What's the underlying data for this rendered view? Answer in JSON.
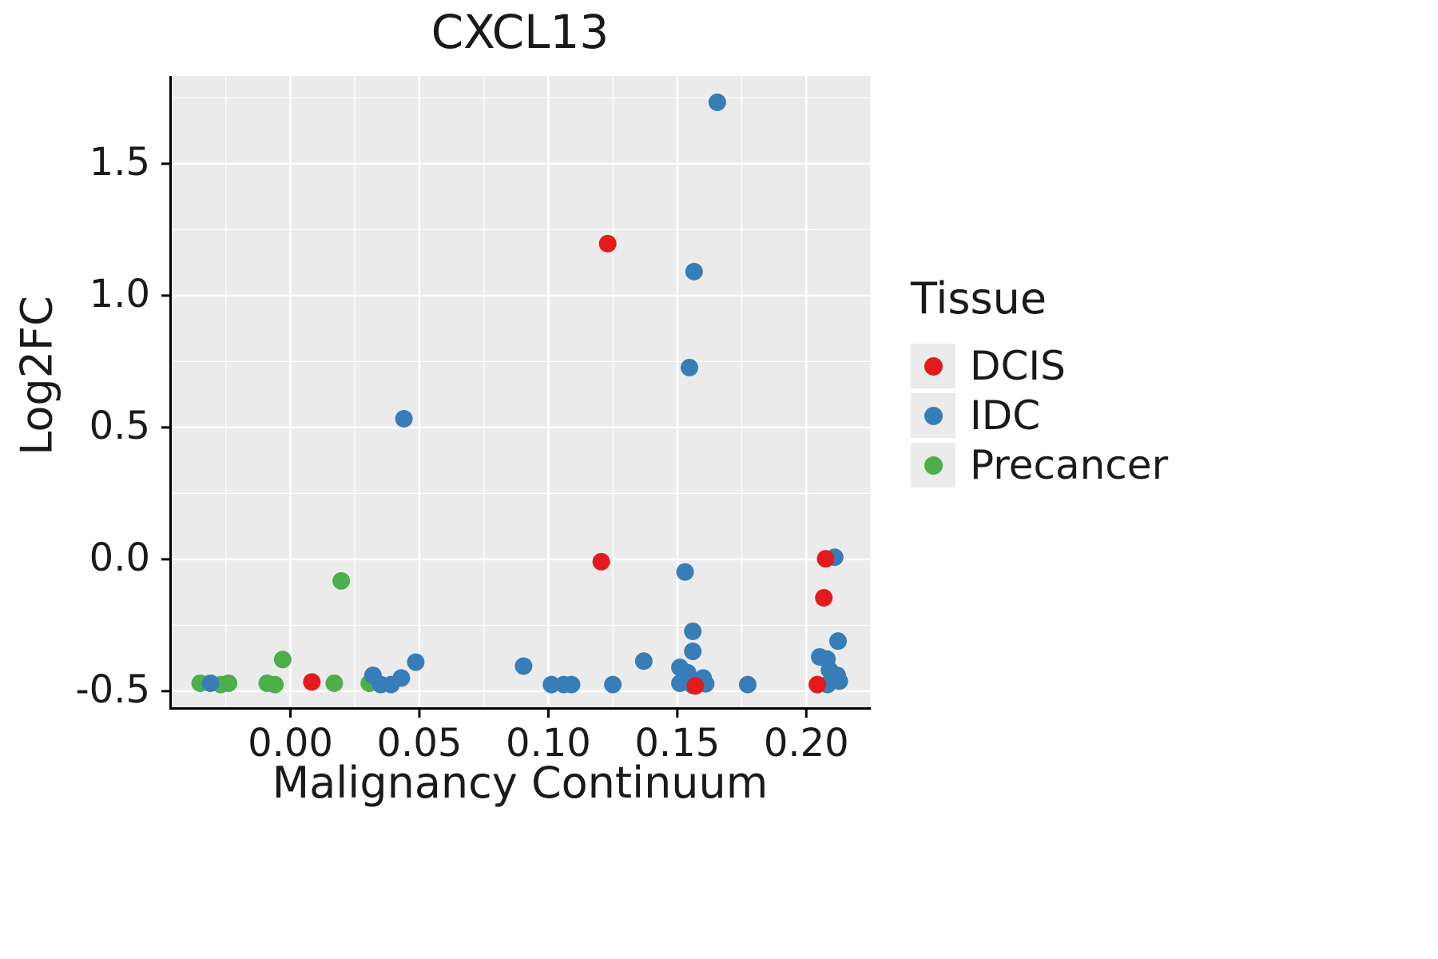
{
  "chart_data": {
    "type": "scatter",
    "title": "CXCL13",
    "xlabel": "Malignancy Continuum",
    "ylabel": "Log2FC",
    "xlim": [
      -0.046,
      0.225
    ],
    "ylim": [
      -0.561,
      1.833
    ],
    "xticks": {
      "values": [
        0.0,
        0.05,
        0.1,
        0.15,
        0.2
      ],
      "labels": [
        "0.00",
        "0.05",
        "0.10",
        "0.15",
        "0.20"
      ]
    },
    "yticks": {
      "values": [
        -0.5,
        0.0,
        0.5,
        1.0,
        1.5
      ],
      "labels": [
        "-0.5",
        "0.0",
        "0.5",
        "1.0",
        "1.5"
      ]
    },
    "x_minor": [
      -0.025,
      0.025,
      0.075,
      0.125,
      0.175,
      0.225
    ],
    "y_minor": [
      -0.25,
      0.25,
      0.75,
      1.25,
      1.75
    ],
    "panel_bg": "#EBEBEB",
    "grid_color": "#FFFFFF",
    "axis_color": "#000000",
    "point_radius": 11,
    "grid": true,
    "legend_position": "right",
    "series": [
      {
        "name": "Precancer",
        "color": "#4DAF4A",
        "points": [
          [
            -0.035,
            -0.47
          ],
          [
            -0.027,
            -0.475
          ],
          [
            -0.024,
            -0.47
          ],
          [
            -0.009,
            -0.47
          ],
          [
            -0.006,
            -0.475
          ],
          [
            -0.003,
            -0.38
          ],
          [
            0.017,
            -0.47
          ],
          [
            0.0197,
            -0.082
          ],
          [
            0.0306,
            -0.47
          ]
        ]
      },
      {
        "name": "IDC",
        "color": "#377EB8",
        "points": [
          [
            -0.031,
            -0.47
          ],
          [
            0.032,
            -0.44
          ],
          [
            0.035,
            -0.475
          ],
          [
            0.039,
            -0.475
          ],
          [
            0.043,
            -0.45
          ],
          [
            0.044,
            0.533
          ],
          [
            0.0486,
            -0.39
          ],
          [
            0.0904,
            -0.405
          ],
          [
            0.1012,
            -0.475
          ],
          [
            0.106,
            -0.475
          ],
          [
            0.109,
            -0.475
          ],
          [
            0.125,
            -0.475
          ],
          [
            0.137,
            -0.386
          ],
          [
            0.151,
            -0.41
          ],
          [
            0.156,
            -0.273
          ],
          [
            0.156,
            -0.349
          ],
          [
            0.154,
            -0.43
          ],
          [
            0.151,
            -0.47
          ],
          [
            0.156,
            -0.478
          ],
          [
            0.16,
            -0.45
          ],
          [
            0.161,
            -0.472
          ],
          [
            0.153,
            -0.048
          ],
          [
            0.1547,
            0.727
          ],
          [
            0.1565,
            1.091
          ],
          [
            0.1655,
            1.733
          ],
          [
            0.1773,
            -0.475
          ],
          [
            0.2052,
            -0.37
          ],
          [
            0.208,
            -0.378
          ],
          [
            0.2123,
            -0.31
          ],
          [
            0.209,
            -0.42
          ],
          [
            0.212,
            -0.44
          ],
          [
            0.2128,
            -0.462
          ],
          [
            0.2082,
            -0.475
          ],
          [
            0.211,
            0.008
          ]
        ]
      },
      {
        "name": "DCIS",
        "color": "#E41A1C",
        "points": [
          [
            0.0083,
            -0.465
          ],
          [
            0.123,
            1.197
          ],
          [
            0.1205,
            -0.009
          ],
          [
            0.157,
            -0.48
          ],
          [
            0.2068,
            -0.146
          ],
          [
            0.2043,
            -0.475
          ],
          [
            0.2075,
            0.002
          ]
        ]
      }
    ],
    "legend": {
      "title": "Tissue",
      "entries": [
        {
          "label": "DCIS",
          "color": "#E41A1C"
        },
        {
          "label": "IDC",
          "color": "#377EB8"
        },
        {
          "label": "Precancer",
          "color": "#4DAF4A"
        }
      ]
    }
  }
}
